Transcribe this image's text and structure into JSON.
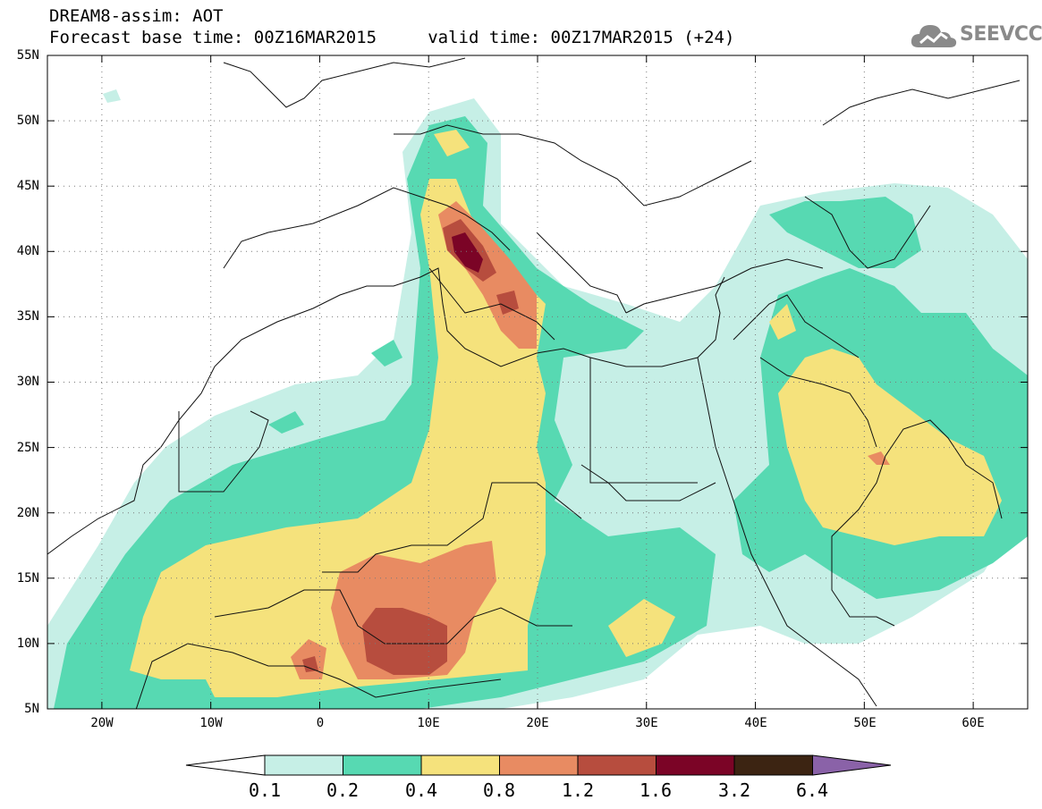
{
  "header": {
    "line1": "DREAM8-assim: AOT",
    "line2": "Forecast base time: 00Z16MAR2015     valid time: 00Z17MAR2015 (+24)"
  },
  "logo": {
    "text": "SEEVCCC",
    "icon": "cloud-icon",
    "color": "#8a8a8a"
  },
  "map": {
    "lon_range": [
      -25,
      65
    ],
    "lat_range": [
      5,
      55
    ],
    "lat_labels": [
      "55N",
      "50N",
      "45N",
      "40N",
      "35N",
      "30N",
      "25N",
      "20N",
      "15N",
      "10N",
      "5N"
    ],
    "lon_labels": [
      "20W",
      "10W",
      "0",
      "10E",
      "20E",
      "30E",
      "40E",
      "50E",
      "60E"
    ],
    "grid": "dotted"
  },
  "colorbar": {
    "labels": [
      "0.1",
      "0.2",
      "0.4",
      "0.8",
      "1.2",
      "1.6",
      "3.2",
      "6.4"
    ],
    "colors": [
      "#ffffff",
      "#c6efe6",
      "#57d9b2",
      "#f5e27c",
      "#e88b62",
      "#b74d3e",
      "#7b0426",
      "#3c2412",
      "#8a62a8"
    ]
  }
}
